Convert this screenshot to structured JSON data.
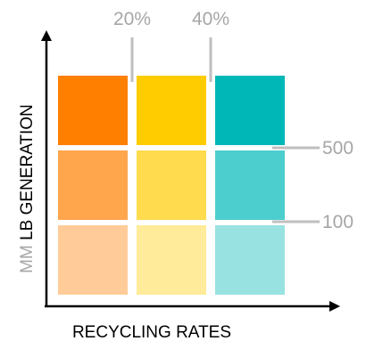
{
  "x_axis": {
    "label": "RECYCLING RATES",
    "ticks": [
      "20%",
      "40%"
    ]
  },
  "y_axis": {
    "label_prefix": "MM",
    "label_main": " LB GENERATION",
    "ticks": [
      "500",
      "100"
    ]
  },
  "grid": {
    "rows": 3,
    "cols": 3,
    "cell_colors": [
      [
        "#ff7f00",
        "#ffcc00",
        "#00b7b7"
      ],
      [
        "#ffa64d",
        "#ffdb4d",
        "#4dcece"
      ],
      [
        "#ffcc99",
        "#ffeb99",
        "#99e2e2"
      ]
    ]
  },
  "colors": {
    "axis": "#000000",
    "tick_line": "#bfbfbf",
    "tick_text": "#a6a6a6",
    "label_prefix": "#a6a6a6",
    "label_main": "#000000"
  }
}
